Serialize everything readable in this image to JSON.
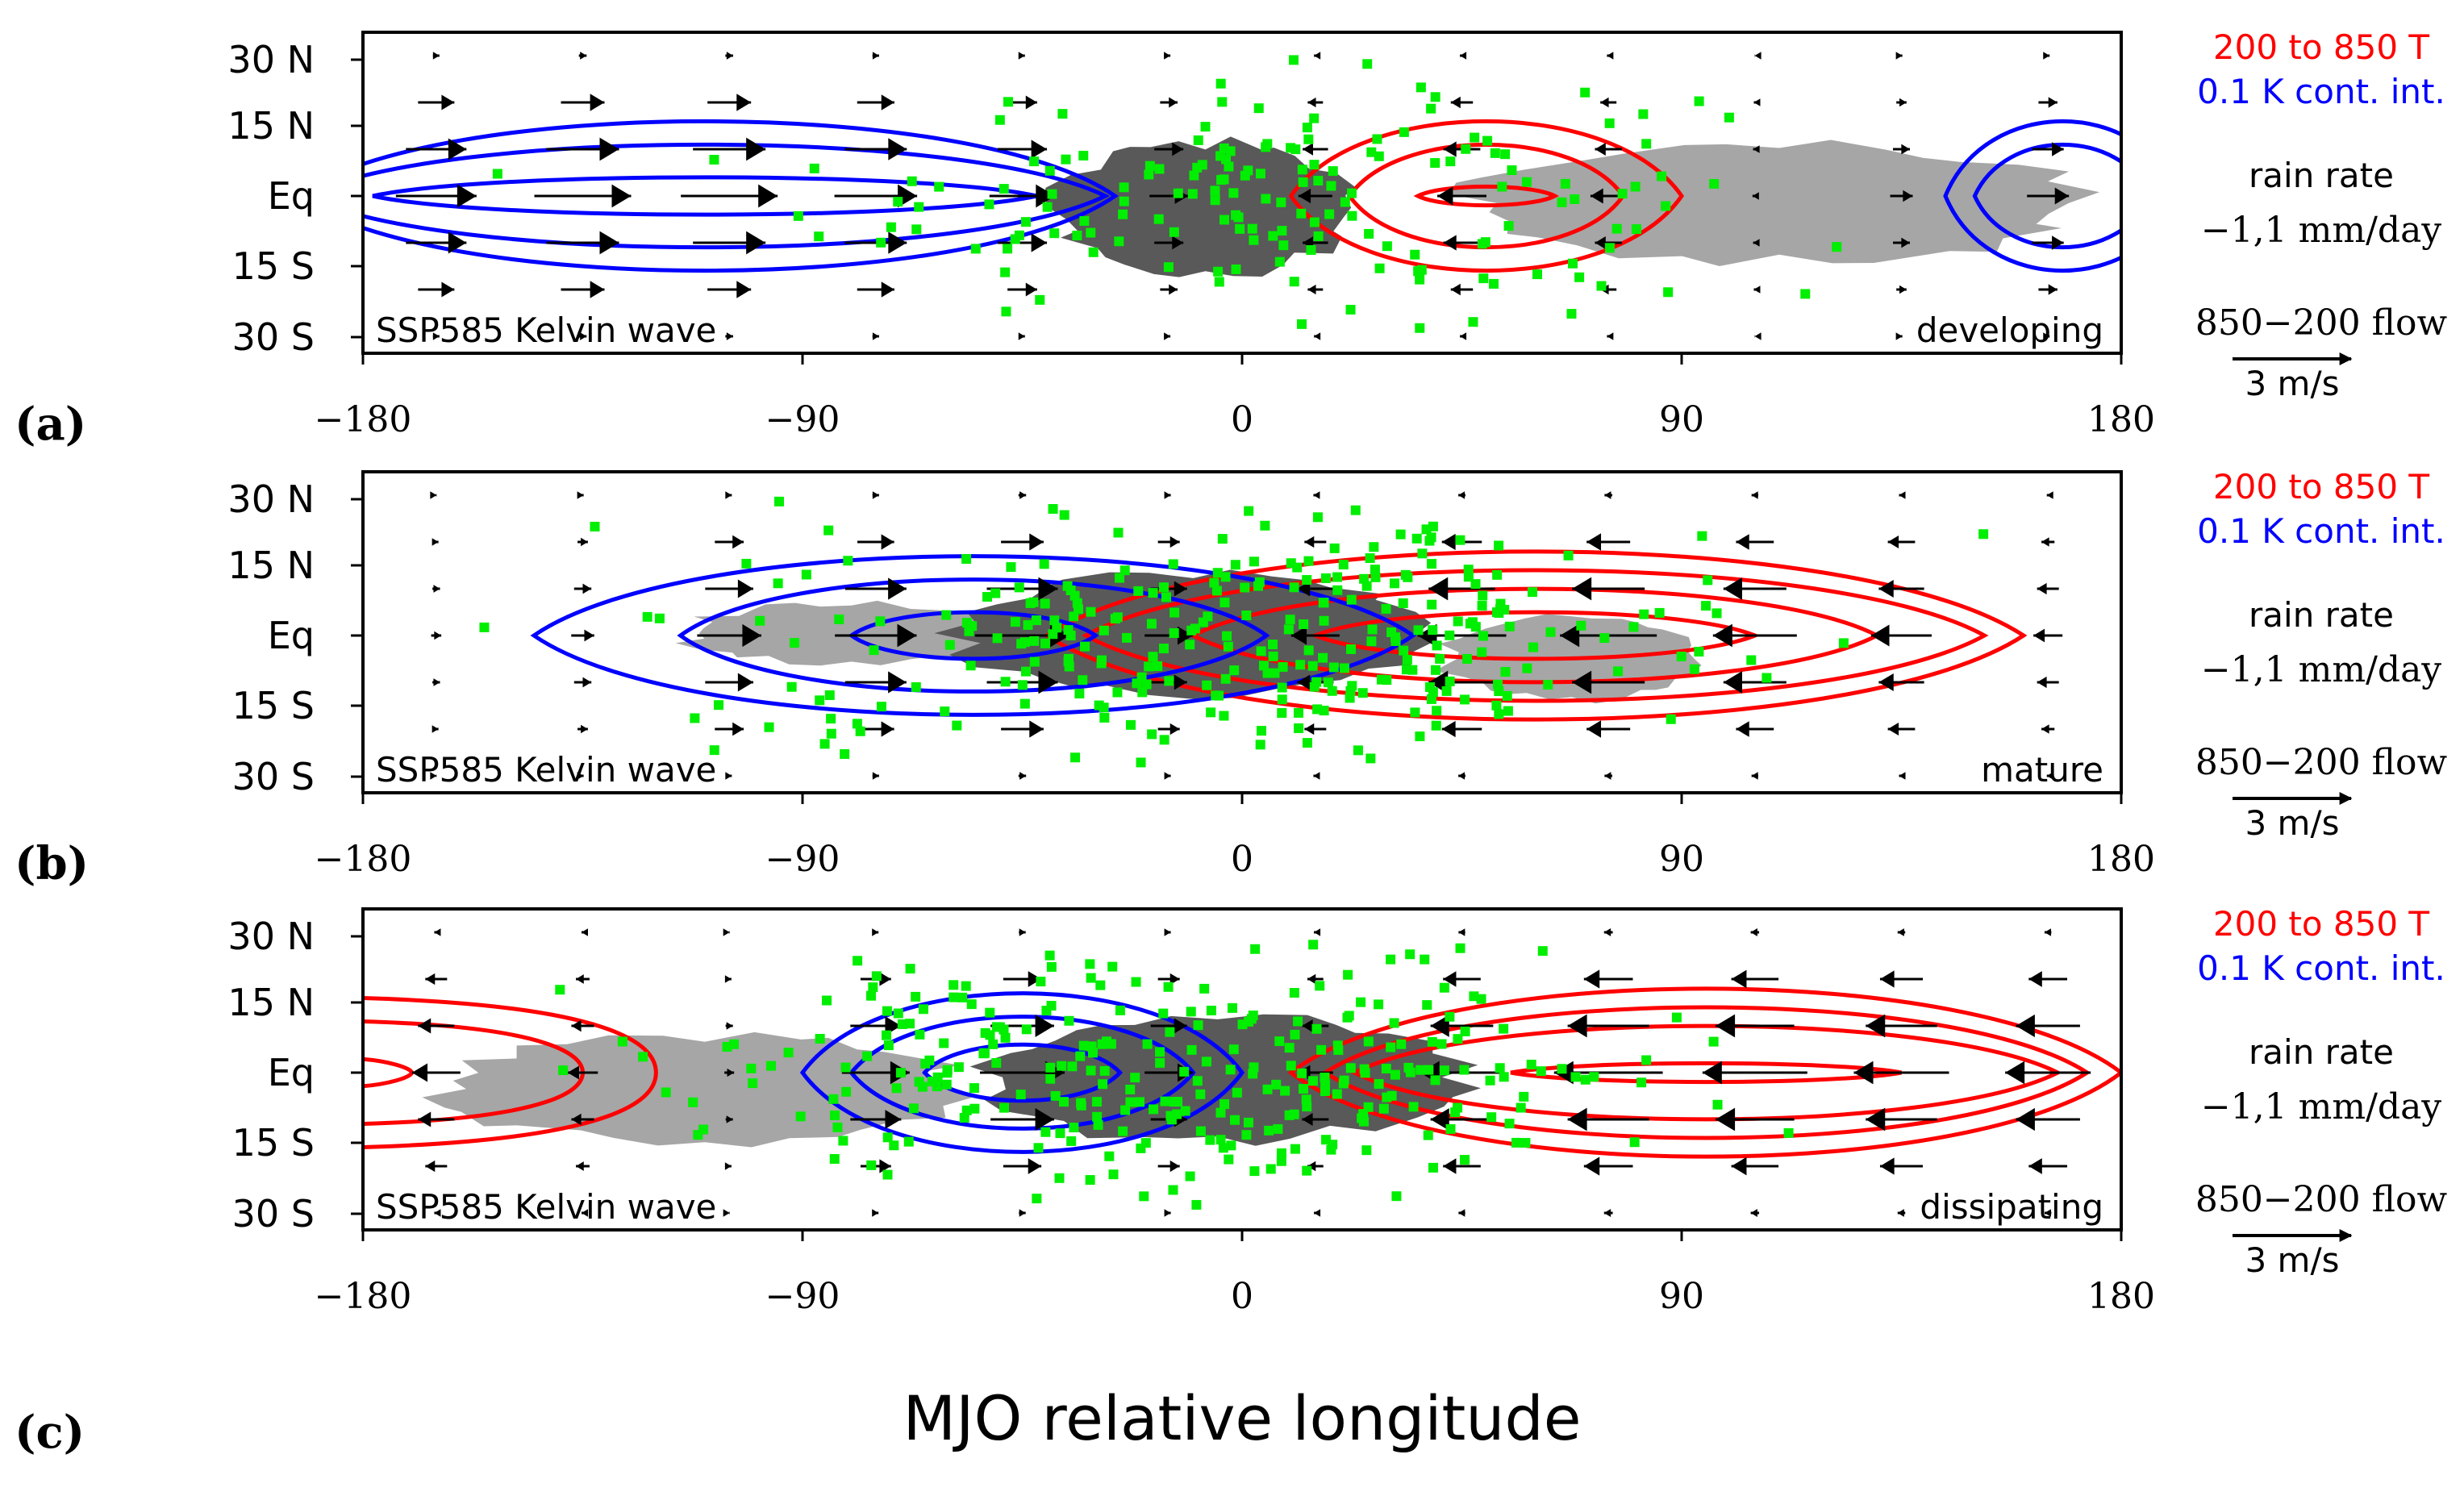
{
  "chart_data": {
    "type": "composite_map",
    "xlabel": "MJO relative longitude",
    "x_ticks": [
      "−180",
      "−90",
      "0",
      "90",
      "180"
    ],
    "x_tick_values": [
      -180,
      -90,
      0,
      90,
      180
    ],
    "y_ticks": [
      "30 N",
      "15 N",
      "Eq",
      "15 S",
      "30 S"
    ],
    "y_tick_values": [
      30,
      15,
      0,
      -15,
      -30
    ],
    "xlim": [
      -180,
      180
    ],
    "ylim": [
      -35,
      35
    ],
    "legend": {
      "temp_line1": "200 to 850 T",
      "temp_line2": "0.1 K cont. int.",
      "rain_line1": "rain rate",
      "rain_line2": "−1,1 mm/day",
      "flow_label": "850−200 flow",
      "arrow_scale": "3 m/s",
      "warm_color": "#ff0000",
      "cool_color": "#0000ff",
      "point_color": "#00ee00",
      "rain_pos_color": "#595959",
      "rain_neg_color": "#a6a6a6"
    },
    "panels": [
      {
        "label": "(a)",
        "case": "SSP585 Kelvin wave",
        "stage": "developing",
        "warm_anomaly": {
          "center_lon": 50,
          "center_lat": 0,
          "contours": [
            {
              "lon_half": 40,
              "lat_half": 16
            },
            {
              "lon_half": 28,
              "lat_half": 11
            },
            {
              "lon_half": 14,
              "lat_half": 2
            }
          ]
        },
        "cool_anomalies": [
          {
            "center_lon": -110,
            "center_lat": 0,
            "contours": [
              {
                "lon_half": 84,
                "lat_half": 16
              },
              {
                "lon_half": 82,
                "lat_half": 11
              },
              {
                "lon_half": 68,
                "lat_half": 4
              }
            ]
          },
          {
            "center_lon": 168,
            "center_lat": 0,
            "contours": [
              {
                "lon_half": 24,
                "lat_half": 16
              },
              {
                "lon_half": 18,
                "lat_half": 11
              }
            ]
          }
        ],
        "rain_positive": [
          {
            "lon": [
              -40,
              25
            ],
            "lat": [
              -17,
              12
            ]
          }
        ],
        "rain_negative": [
          {
            "lon": [
              45,
              175
            ],
            "lat": [
              -14,
              11
            ]
          }
        ],
        "wind_profile": [
          {
            "lon": -180,
            "u": 2
          },
          {
            "lon": -150,
            "u": 3
          },
          {
            "lon": -100,
            "u": 3
          },
          {
            "lon": -60,
            "u": 2.3
          },
          {
            "lon": -20,
            "u": 1.6
          },
          {
            "lon": 0,
            "u": 0
          },
          {
            "lon": 20,
            "u": -1.4
          },
          {
            "lon": 60,
            "u": -1.6
          },
          {
            "lon": 100,
            "u": -0.3
          },
          {
            "lon": 130,
            "u": 0.6
          },
          {
            "lon": 180,
            "u": 1.6
          }
        ],
        "points": {
          "count": 170,
          "lon_center": 5,
          "lon_spread": 45,
          "lat_spread": 13
        }
      },
      {
        "label": "(b)",
        "case": "SSP585 Kelvin wave",
        "stage": "mature",
        "warm_anomaly": {
          "center_lon": 60,
          "center_lat": 0,
          "contours": [
            {
              "lon_half": 100,
              "lat_half": 18
            },
            {
              "lon_half": 92,
              "lat_half": 14
            },
            {
              "lon_half": 70,
              "lat_half": 10
            },
            {
              "lon_half": 45,
              "lat_half": 5
            }
          ]
        },
        "cool_anomalies": [
          {
            "center_lon": -55,
            "center_lat": 0,
            "contours": [
              {
                "lon_half": 90,
                "lat_half": 17
              },
              {
                "lon_half": 60,
                "lat_half": 12
              },
              {
                "lon_half": 25,
                "lat_half": 5
              }
            ]
          }
        ],
        "rain_positive": [
          {
            "lon": [
              -60,
              40
            ],
            "lat": [
              -13,
              14
            ]
          }
        ],
        "rain_negative": [
          {
            "lon": [
              -115,
              -45
            ],
            "lat": [
              -6,
              7
            ]
          },
          {
            "lon": [
              40,
              95
            ],
            "lat": [
              -14,
              4
            ]
          }
        ],
        "wind_profile": [
          {
            "lon": -180,
            "u": 0.2
          },
          {
            "lon": -140,
            "u": 0.5
          },
          {
            "lon": -100,
            "u": 2.2
          },
          {
            "lon": -40,
            "u": 3
          },
          {
            "lon": -10,
            "u": 1.2
          },
          {
            "lon": 0,
            "u": 0
          },
          {
            "lon": 20,
            "u": -2
          },
          {
            "lon": 60,
            "u": -3.2
          },
          {
            "lon": 120,
            "u": -2.4
          },
          {
            "lon": 160,
            "u": -1
          },
          {
            "lon": 180,
            "u": -0.6
          }
        ],
        "points": {
          "count": 300,
          "lon_center": 0,
          "lon_spread": 50,
          "lat_spread": 13
        }
      },
      {
        "label": "(c)",
        "case": "SSP585 Kelvin wave",
        "stage": "dissipating",
        "warm_anomaly": {
          "center_lon": 95,
          "center_lat": 0,
          "contours": [
            {
              "lon_half": 85,
              "lat_half": 18
            },
            {
              "lon_half": 78,
              "lat_half": 14
            },
            {
              "lon_half": 72,
              "lat_half": 10
            },
            {
              "lon_half": 40,
              "lat_half": 2
            }
          ]
        },
        "cool_anomalies": [
          {
            "center_lon": -45,
            "center_lat": 0,
            "contours": [
              {
                "lon_half": 45,
                "lat_half": 17
              },
              {
                "lon_half": 35,
                "lat_half": 12
              },
              {
                "lon_half": 20,
                "lat_half": 6
              }
            ]
          }
        ],
        "warm_west": {
          "edge_lon": -180,
          "contours": [
            {
              "nose_lon": -120,
              "lat_half": 16
            },
            {
              "nose_lon": -135,
              "lat_half": 11
            },
            {
              "nose_lon": -170,
              "lat_half": 3
            }
          ]
        },
        "rain_positive": [
          {
            "lon": [
              -55,
              45
            ],
            "lat": [
              -15,
              13
            ]
          }
        ],
        "rain_negative": [
          {
            "lon": [
              -165,
              -55
            ],
            "lat": [
              -15,
              8
            ]
          }
        ],
        "wind_profile": [
          {
            "lon": -180,
            "u": -1.5
          },
          {
            "lon": -150,
            "u": -1.5
          },
          {
            "lon": -110,
            "u": 0
          },
          {
            "lon": -60,
            "u": 3
          },
          {
            "lon": -20,
            "u": 2
          },
          {
            "lon": 0,
            "u": 0
          },
          {
            "lon": 30,
            "u": -2.2
          },
          {
            "lon": 80,
            "u": -3.5
          },
          {
            "lon": 130,
            "u": -3
          },
          {
            "lon": 180,
            "u": -2.5
          }
        ],
        "points": {
          "count": 300,
          "lon_center": -10,
          "lon_spread": 48,
          "lat_spread": 13
        }
      }
    ]
  }
}
